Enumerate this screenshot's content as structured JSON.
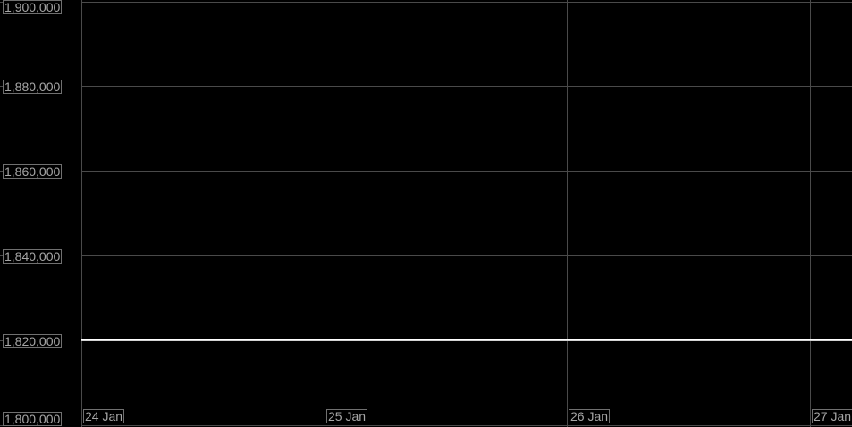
{
  "chart_data": {
    "type": "line",
    "title": "",
    "xlabel": "",
    "ylabel": "",
    "ylim": [
      1800000,
      1900000
    ],
    "yticks": [
      "1,800,000",
      "1,820,000",
      "1,840,000",
      "1,860,000",
      "1,880,000",
      "1,900,000"
    ],
    "ytick_values": [
      1800000,
      1820000,
      1840000,
      1860000,
      1880000,
      1900000
    ],
    "xticks": [
      "24 Jan",
      "25 Jan",
      "26 Jan",
      "27 Jan"
    ],
    "grid": true,
    "series": [
      {
        "x": [
          "24 Jan",
          "25 Jan",
          "26 Jan",
          "27 Jan"
        ],
        "values": [
          1820000,
          1820000,
          1820000,
          1820000
        ],
        "color": "#ffffff"
      }
    ],
    "colors": {
      "background": "#000000",
      "grid": "#4a4a4a",
      "label_text": "#a6a6a6"
    }
  }
}
